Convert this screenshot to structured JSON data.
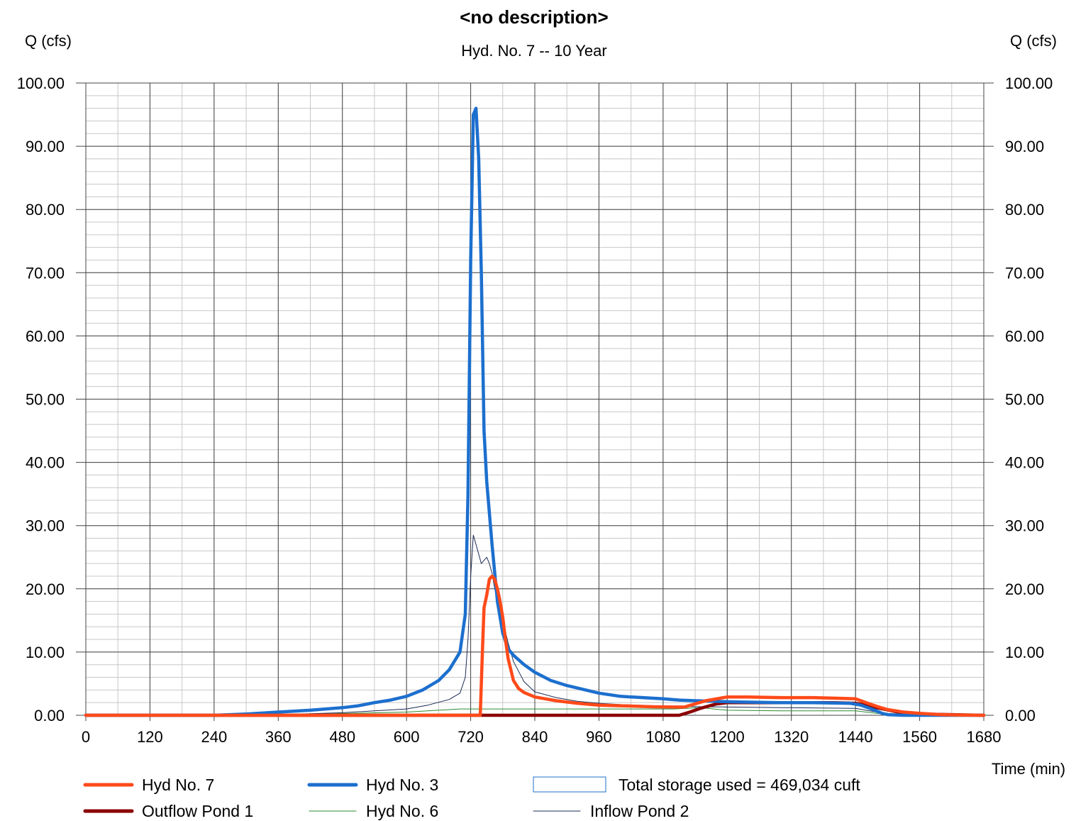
{
  "chart_data": {
    "type": "line",
    "title": "<no description>",
    "subtitle": "Hyd. No. 7 -- 10 Year",
    "ylabel_left": "Q (cfs)",
    "ylabel_right": "Q (cfs)",
    "xlabel": "Time (min)",
    "xlim": [
      0,
      1680
    ],
    "ylim": [
      0,
      100
    ],
    "x_ticks": [
      "0",
      "120",
      "240",
      "360",
      "480",
      "600",
      "720",
      "840",
      "960",
      "1080",
      "1200",
      "1320",
      "1440",
      "1560",
      "1680"
    ],
    "y_ticks": [
      "0.00",
      "10.00",
      "20.00",
      "30.00",
      "40.00",
      "50.00",
      "60.00",
      "70.00",
      "80.00",
      "90.00",
      "100.00"
    ],
    "x_major_step": 120,
    "x_minor_step": 60,
    "y_major_step": 10,
    "y_minor_step": 2,
    "grid": true,
    "legend_position": "bottom",
    "series": [
      {
        "name": "Hyd No. 7",
        "color": "#ff4a1a",
        "width": 4.5,
        "x": [
          0,
          738,
          742,
          745,
          750,
          755,
          760,
          765,
          770,
          775,
          780,
          785,
          790,
          800,
          810,
          820,
          840,
          880,
          920,
          960,
          1000,
          1040,
          1060,
          1100,
          1120,
          1160,
          1200,
          1240,
          1300,
          1360,
          1400,
          1440,
          1460,
          1480,
          1500,
          1530,
          1560,
          1600,
          1640,
          1680
        ],
        "y": [
          0,
          0,
          10,
          17,
          19,
          21.5,
          22,
          21.5,
          20,
          18,
          15.5,
          12,
          9,
          5.5,
          4.2,
          3.6,
          2.9,
          2.3,
          1.9,
          1.6,
          1.5,
          1.4,
          1.35,
          1.3,
          1.3,
          2.3,
          2.9,
          2.9,
          2.8,
          2.8,
          2.7,
          2.6,
          2.0,
          1.4,
          0.9,
          0.5,
          0.3,
          0.1,
          0.02,
          0
        ]
      },
      {
        "name": "Hyd No. 3",
        "color": "#1c6fce",
        "width": 4.5,
        "x": [
          0,
          240,
          300,
          360,
          420,
          480,
          510,
          540,
          570,
          600,
          630,
          660,
          680,
          700,
          710,
          715,
          720,
          725,
          730,
          735,
          740,
          745,
          750,
          760,
          770,
          780,
          790,
          800,
          820,
          840,
          870,
          900,
          960,
          1000,
          1080,
          1110,
          1140,
          1180,
          1220,
          1300,
          1360,
          1430,
          1450,
          1470,
          1490,
          1500,
          1530,
          1680
        ],
        "y": [
          0,
          0,
          0.2,
          0.5,
          0.8,
          1.2,
          1.5,
          2,
          2.4,
          3,
          4,
          5.5,
          7.2,
          10,
          16,
          35,
          72,
          95,
          96,
          88,
          70,
          45,
          37,
          27,
          18,
          13,
          10.5,
          9.5,
          8,
          6.8,
          5.5,
          4.7,
          3.5,
          3,
          2.6,
          2.4,
          2.3,
          2.2,
          2.1,
          2.0,
          2.0,
          1.9,
          1.6,
          1.0,
          0.3,
          0.1,
          0,
          0
        ]
      },
      {
        "name": "Total storage used = 469,034 cuft",
        "color": "#1c6fce",
        "width": 1,
        "legend_type": "box",
        "x": [],
        "y": []
      },
      {
        "name": "Outflow Pond 1",
        "color": "#8b0000",
        "width": 4.5,
        "x": [
          0,
          1110,
          1130,
          1150,
          1180,
          1200,
          1300,
          1400,
          1440,
          1460,
          1480,
          1520,
          1560,
          1680
        ],
        "y": [
          0,
          0,
          0.5,
          1.1,
          1.8,
          2.0,
          2.0,
          2.0,
          1.9,
          1.6,
          1.2,
          0.5,
          0.2,
          0
        ]
      },
      {
        "name": "Hyd No. 6",
        "color": "#2e8b2e",
        "width": 1,
        "x": [
          0,
          300,
          500,
          600,
          660,
          700,
          720,
          760,
          800,
          900,
          1000,
          1100,
          1150,
          1200,
          1300,
          1440,
          1480,
          1520,
          1680
        ],
        "y": [
          0,
          0,
          0.3,
          0.5,
          0.8,
          1.0,
          1.0,
          1.0,
          1.0,
          1.0,
          1.0,
          1.0,
          1.2,
          0.8,
          0.7,
          0.7,
          0.3,
          0,
          0
        ]
      },
      {
        "name": "Inflow Pond 2",
        "color": "#1a2a55",
        "width": 1,
        "x": [
          0,
          300,
          400,
          480,
          540,
          600,
          640,
          680,
          700,
          710,
          715,
          720,
          725,
          730,
          740,
          745,
          750,
          755,
          760,
          765,
          770,
          780,
          790,
          800,
          820,
          840,
          880,
          920,
          960,
          1000,
          1100,
          1200,
          1300,
          1440,
          1460,
          1500,
          1680
        ],
        "y": [
          0,
          0,
          0.2,
          0.4,
          0.7,
          1.0,
          1.6,
          2.5,
          3.5,
          6,
          12,
          22,
          28.5,
          27,
          24,
          24.5,
          25,
          24,
          22.5,
          20,
          18,
          15,
          11.5,
          8.5,
          5.3,
          3.7,
          2.8,
          2.2,
          1.9,
          1.7,
          1.4,
          1.3,
          1.2,
          1.1,
          0.8,
          0.2,
          0
        ]
      }
    ]
  }
}
